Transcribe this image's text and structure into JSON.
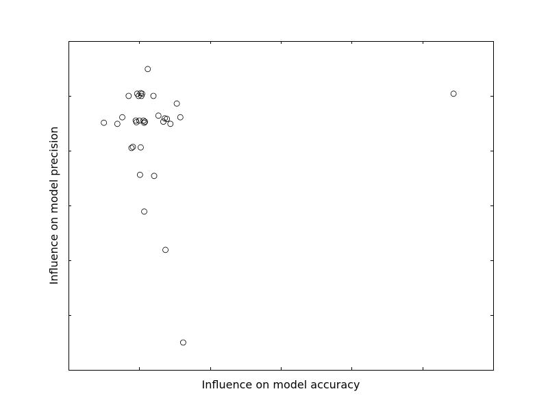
{
  "chart_data": {
    "type": "scatter",
    "title": "",
    "xlabel": "Influence on model accuracy",
    "ylabel": "Influence on model precision",
    "xlim": [
      0,
      6
    ],
    "ylim": [
      0,
      6
    ],
    "xticks": [
      1,
      2,
      3,
      4,
      5
    ],
    "yticks": [
      1,
      2,
      3,
      4,
      5
    ],
    "tick_labels_visible": false,
    "grid": false,
    "legend": "none",
    "marker": "open-circle",
    "marker_color": "#000000",
    "series": [
      {
        "x": [
          1.12,
          0.97,
          1.02,
          1.04,
          0.99,
          1.03,
          0.85,
          1.2,
          1.53,
          0.76,
          1.27,
          1.58,
          0.5,
          0.69,
          0.95,
          1.0,
          1.06,
          1.08,
          0.96,
          1.07,
          1.34,
          1.36,
          1.44,
          1.39,
          0.89,
          0.91,
          1.02,
          1.01,
          1.21,
          1.07,
          1.37,
          1.62,
          5.44
        ],
        "y": [
          5.49,
          5.04,
          5.05,
          5.04,
          5.0,
          5.0,
          5.0,
          5.0,
          4.86,
          4.61,
          4.64,
          4.61,
          4.51,
          4.49,
          4.55,
          4.55,
          4.55,
          4.53,
          4.52,
          4.51,
          4.53,
          4.59,
          4.49,
          4.58,
          4.05,
          4.07,
          4.06,
          3.56,
          3.54,
          2.89,
          2.19,
          0.5,
          5.04
        ]
      }
    ]
  }
}
